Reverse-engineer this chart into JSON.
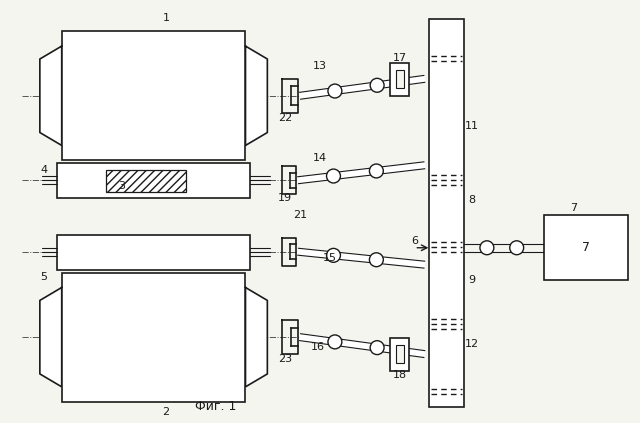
{
  "bg_color": "#f5f5f0",
  "line_color": "#1a1a1a",
  "caption": "Фиг. 1",
  "fig_width": 6.4,
  "fig_height": 4.23
}
